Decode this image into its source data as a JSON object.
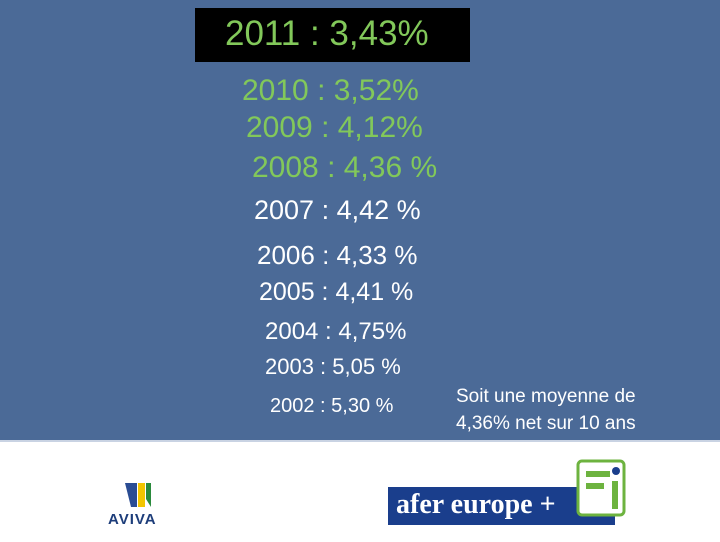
{
  "headline": "2011 : 3,43%",
  "rows": [
    "2010 : 3,52%",
    "2009 : 4,12%",
    "2008 : 4,36 %",
    "2007 : 4,42 %",
    "2006 : 4,33 %",
    "2005 : 4,41 %",
    "2004 : 4,75%",
    "2003 : 5,05 %",
    "2002 : 5,30 %"
  ],
  "note": [
    "Soit une moyenne de",
    "4,36% net sur 10 ans"
  ],
  "logos": {
    "left": "AVIVA",
    "right": "afer europe +"
  }
}
